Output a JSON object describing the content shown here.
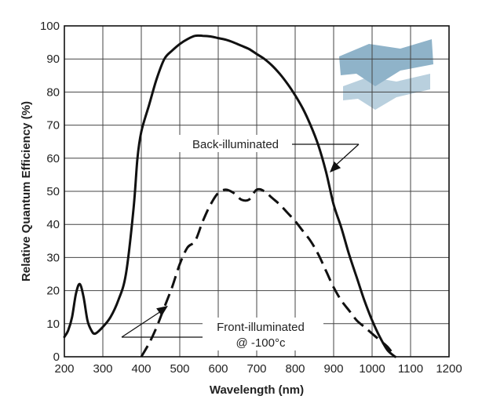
{
  "chart_data": {
    "type": "line",
    "title": "",
    "xlabel": "Wavelength (nm)",
    "ylabel": "Relative Quantum Efficiency (%)",
    "xlim": [
      200,
      1200
    ],
    "ylim": [
      0,
      100
    ],
    "xticks": [
      "200",
      "300",
      "400",
      "500",
      "600",
      "700",
      "800",
      "900",
      "1000",
      "1100",
      "1200"
    ],
    "yticks": [
      "0",
      "10",
      "20",
      "30",
      "40",
      "50",
      "60",
      "70",
      "80",
      "90",
      "100"
    ],
    "grid": true,
    "legend": "none",
    "series": [
      {
        "name": "Back-illuminated",
        "style": "solid",
        "color": "#111111",
        "x": [
          200,
          210,
          220,
          230,
          240,
          250,
          260,
          270,
          280,
          300,
          320,
          340,
          360,
          380,
          390,
          400,
          420,
          440,
          460,
          480,
          500,
          520,
          540,
          560,
          580,
          600,
          620,
          640,
          660,
          680,
          700,
          720,
          740,
          760,
          780,
          800,
          820,
          840,
          860,
          880,
          900,
          920,
          940,
          960,
          980,
          1000,
          1020,
          1040,
          1060
        ],
        "y": [
          6,
          8,
          12,
          19,
          22,
          18,
          11,
          8,
          7,
          9,
          12,
          17,
          25,
          45,
          60,
          68,
          76,
          84,
          90,
          92.5,
          94.5,
          96,
          97,
          97,
          96.8,
          96.3,
          95.8,
          95,
          94,
          93,
          91.5,
          90,
          88,
          85.5,
          82.5,
          79,
          75,
          70,
          64,
          56,
          46,
          39,
          31,
          24,
          17,
          11,
          6,
          2,
          0
        ]
      },
      {
        "name": "Front-illuminated @ -100°c",
        "style": "dashed",
        "color": "#111111",
        "x": [
          400,
          420,
          440,
          460,
          480,
          500,
          520,
          540,
          560,
          580,
          600,
          620,
          640,
          660,
          680,
          700,
          720,
          740,
          760,
          780,
          800,
          820,
          840,
          860,
          880,
          900,
          920,
          940,
          960,
          980,
          1000,
          1020,
          1040,
          1060
        ],
        "y": [
          0,
          4,
          9,
          15,
          21,
          28,
          33,
          35,
          41,
          46,
          49.5,
          50.5,
          49.5,
          47.5,
          47.5,
          50.5,
          50,
          48,
          46,
          43.5,
          41,
          38,
          35,
          31,
          26,
          21,
          17,
          14,
          11,
          9,
          7,
          5,
          3,
          0
        ]
      }
    ],
    "annotations": [
      {
        "text": "Back-illuminated",
        "series": 0
      },
      {
        "line1": "Front-illuminated",
        "line2": "@ -100°c",
        "series": 1
      }
    ]
  },
  "watermark": {
    "icon": "layered-wave-logo-icon",
    "color_top": "#8fb3c9",
    "color_bottom": "#b9d0de"
  }
}
